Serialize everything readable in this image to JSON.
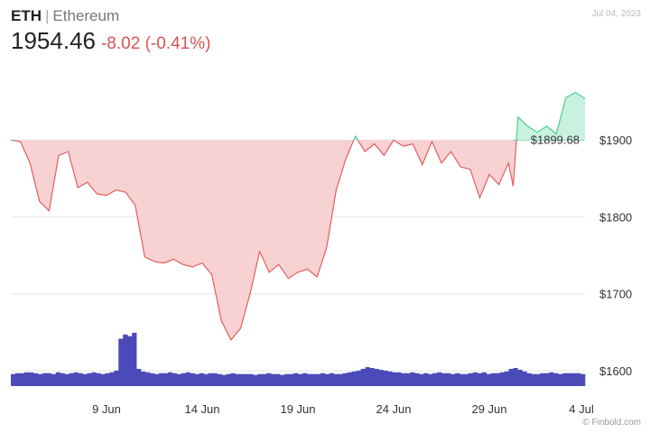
{
  "header": {
    "symbol": "ETH",
    "separator": "|",
    "name": "Ethereum",
    "price": "1954.46",
    "change": "-8.02 (-0.41%)",
    "date": "Jul 04, 2023"
  },
  "credit": "© Finbold.com",
  "colors": {
    "up_line": "#4ccb96",
    "up_fill": "#c9f1df",
    "down_line": "#e35d5d",
    "down_fill": "#f8d2d2",
    "volume": "#4a4ab8",
    "grid": "#e6e6e6",
    "text": "#333333"
  },
  "chart_data": {
    "type": "line",
    "title": "",
    "xlabel": "",
    "ylabel": "",
    "x_ticks": [
      "9 Jun",
      "14 Jun",
      "19 Jun",
      "24 Jun",
      "29 Jun",
      "4 Jul"
    ],
    "y_ticks": [
      "$1600",
      "$1700",
      "$1800",
      "$1900"
    ],
    "ylim": [
      1580,
      2000
    ],
    "xlim": [
      "2023-06-04",
      "2023-07-04"
    ],
    "reference_price": 1899.68,
    "reference_label": "$1899.68",
    "series": [
      {
        "type": "line",
        "x": [
          "2023-06-04",
          "2023-06-04T12:00",
          "2023-06-05",
          "2023-06-05T12:00",
          "2023-06-06",
          "2023-06-06T12:00",
          "2023-06-07",
          "2023-06-07T12:00",
          "2023-06-08",
          "2023-06-08T12:00",
          "2023-06-09",
          "2023-06-09T12:00",
          "2023-06-10",
          "2023-06-10T12:00",
          "2023-06-11",
          "2023-06-11T12:00",
          "2023-06-12",
          "2023-06-12T12:00",
          "2023-06-13",
          "2023-06-13T12:00",
          "2023-06-14",
          "2023-06-14T12:00",
          "2023-06-15",
          "2023-06-15T12:00",
          "2023-06-16",
          "2023-06-16T12:00",
          "2023-06-17",
          "2023-06-17T12:00",
          "2023-06-18",
          "2023-06-18T12:00",
          "2023-06-19",
          "2023-06-19T12:00",
          "2023-06-20",
          "2023-06-20T12:00",
          "2023-06-21",
          "2023-06-21T12:00",
          "2023-06-22",
          "2023-06-22T12:00",
          "2023-06-23",
          "2023-06-23T12:00",
          "2023-06-24",
          "2023-06-24T12:00",
          "2023-06-25",
          "2023-06-25T12:00",
          "2023-06-26",
          "2023-06-26T12:00",
          "2023-06-27",
          "2023-06-27T12:00",
          "2023-06-28",
          "2023-06-28T12:00",
          "2023-06-29",
          "2023-06-29T12:00",
          "2023-06-30",
          "2023-06-30T06:00",
          "2023-06-30T12:00",
          "2023-07-01",
          "2023-07-01T12:00",
          "2023-07-02",
          "2023-07-02T12:00",
          "2023-07-03",
          "2023-07-03T12:00",
          "2023-07-04"
        ],
        "values": [
          1900,
          1898,
          1870,
          1820,
          1808,
          1880,
          1885,
          1838,
          1845,
          1830,
          1828,
          1835,
          1832,
          1815,
          1748,
          1742,
          1740,
          1745,
          1738,
          1735,
          1740,
          1725,
          1665,
          1640,
          1655,
          1700,
          1755,
          1728,
          1738,
          1720,
          1728,
          1732,
          1722,
          1760,
          1835,
          1875,
          1905,
          1885,
          1895,
          1880,
          1900,
          1892,
          1895,
          1868,
          1898,
          1870,
          1885,
          1865,
          1862,
          1825,
          1855,
          1842,
          1870,
          1840,
          1930,
          1918,
          1910,
          1918,
          1908,
          1955,
          1962,
          1954
        ]
      },
      {
        "type": "volume",
        "x_start": "2023-06-04",
        "x_end": "2023-07-04",
        "values": [
          14,
          15,
          15,
          16,
          16,
          15,
          14,
          15,
          15,
          14,
          16,
          15,
          14,
          15,
          16,
          15,
          14,
          15,
          16,
          15,
          14,
          15,
          16,
          18,
          55,
          60,
          58,
          62,
          20,
          17,
          16,
          15,
          14,
          15,
          15,
          16,
          15,
          14,
          15,
          16,
          15,
          14,
          15,
          14,
          15,
          15,
          14,
          13,
          14,
          15,
          14,
          14,
          14,
          14,
          13,
          14,
          14,
          15,
          14,
          14,
          13,
          14,
          14,
          15,
          14,
          15,
          14,
          14,
          14,
          15,
          14,
          15,
          14,
          14,
          15,
          16,
          17,
          18,
          20,
          22,
          21,
          20,
          19,
          18,
          17,
          16,
          16,
          15,
          15,
          16,
          15,
          14,
          15,
          14,
          15,
          16,
          15,
          15,
          14,
          15,
          14,
          14,
          15,
          16,
          15,
          16,
          14,
          15,
          15,
          16,
          17,
          20,
          21,
          19,
          17,
          15,
          14,
          14,
          15,
          15,
          16,
          15,
          14,
          15,
          15,
          15,
          15,
          14
        ]
      }
    ]
  }
}
